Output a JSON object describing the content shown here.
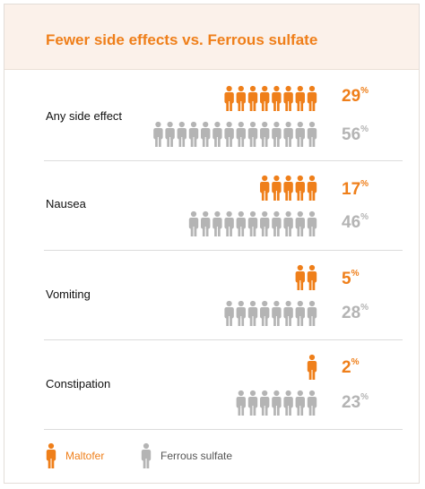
{
  "chart_data": {
    "type": "pictogram",
    "title": "Fewer side effects vs. Ferrous sulfate",
    "categories": [
      "Any side effect",
      "Nausea",
      "Vomiting",
      "Constipation"
    ],
    "series": [
      {
        "name": "Maltofer",
        "values": [
          29,
          17,
          5,
          2
        ],
        "labels": [
          "29",
          "17",
          "5",
          "2"
        ],
        "icon_counts": [
          8,
          5,
          2,
          1
        ],
        "color": "#ef7f1a"
      },
      {
        "name": "Ferrous sulfate",
        "values": [
          56,
          46,
          28,
          23
        ],
        "labels": [
          "56",
          "46",
          "28",
          "23"
        ],
        "icon_counts": [
          14,
          11,
          8,
          7
        ],
        "color": "#b4b4b4"
      }
    ],
    "unit": "%",
    "legend_position": "bottom-left"
  },
  "icon": "person-icon"
}
